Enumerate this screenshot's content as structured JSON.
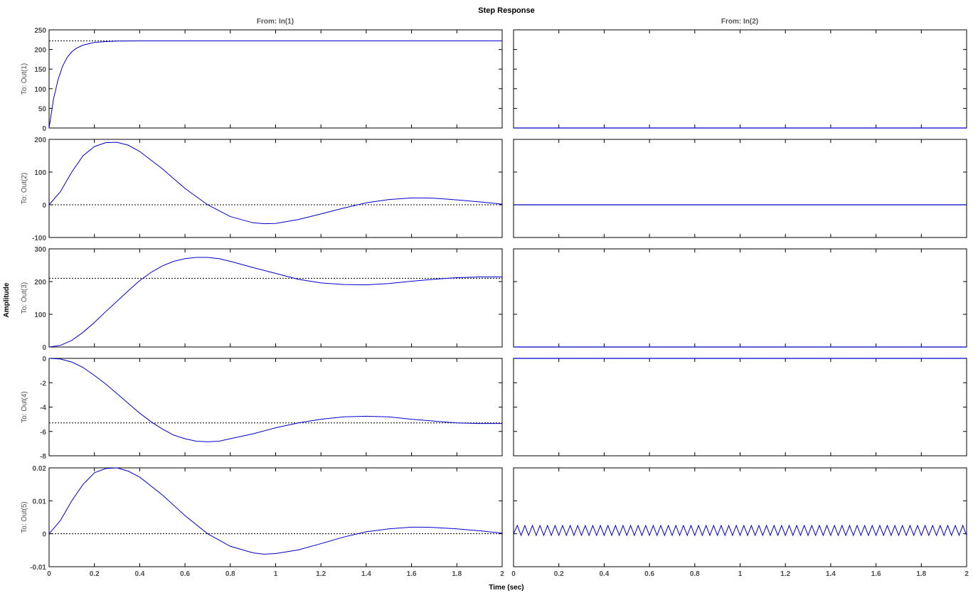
{
  "chart_data": {
    "type": "line",
    "title": "Step Response",
    "xlabel": "Time (sec)",
    "ylabel": "Amplitude",
    "column_titles": [
      "From: In(1)",
      "From: In(2)"
    ],
    "row_labels": [
      "To: Out(1)",
      "To: Out(2)",
      "To: Out(3)",
      "To: Out(4)",
      "To: Out(5)"
    ],
    "xlim": [
      0,
      2
    ],
    "xticks": [
      0,
      0.2,
      0.4,
      0.6,
      0.8,
      1,
      1.2,
      1.4,
      1.6,
      1.8,
      2
    ],
    "xtick_labels": [
      "0",
      "0.2",
      "0.4",
      "0.6",
      "0.8",
      "1",
      "1.2",
      "1.4",
      "1.6",
      "1.8",
      "2"
    ],
    "grid": false,
    "colors": {
      "response": "#0000cc",
      "steady_state": "#000000",
      "axes": "#000000"
    },
    "rows": [
      {
        "ylim": [
          0,
          250
        ],
        "yticks": [
          0,
          50,
          100,
          150,
          200,
          250
        ],
        "ytick_labels": [
          "0",
          "50",
          "100",
          "150",
          "200",
          "250"
        ],
        "steady_state": 222,
        "response_from_in1": {
          "x": [
            0,
            0.02,
            0.04,
            0.06,
            0.08,
            0.1,
            0.12,
            0.15,
            0.2,
            0.25,
            0.3,
            0.4,
            0.6,
            1.0,
            2.0
          ],
          "y": [
            0,
            75,
            124,
            158,
            180,
            194,
            203,
            211,
            218,
            220,
            221.5,
            222,
            222,
            222,
            222
          ]
        },
        "response_from_in2": {
          "x": [
            0,
            2
          ],
          "y": [
            0,
            0
          ]
        }
      },
      {
        "ylim": [
          -100,
          200
        ],
        "yticks": [
          -100,
          0,
          100,
          200
        ],
        "ytick_labels": [
          "-100",
          "0",
          "100",
          "200"
        ],
        "steady_state": 0,
        "response_from_in1": {
          "x": [
            0,
            0.05,
            0.1,
            0.15,
            0.2,
            0.25,
            0.3,
            0.35,
            0.4,
            0.5,
            0.6,
            0.7,
            0.8,
            0.9,
            0.95,
            1.0,
            1.1,
            1.2,
            1.3,
            1.4,
            1.5,
            1.6,
            1.65,
            1.7,
            1.8,
            1.9,
            2.0
          ],
          "y": [
            0,
            40,
            100,
            150,
            178,
            190,
            191,
            182,
            163,
            110,
            50,
            0,
            -36,
            -55,
            -58,
            -57,
            -45,
            -28,
            -10,
            6,
            16,
            21,
            21,
            20,
            15,
            9,
            2
          ]
        },
        "response_from_in2": {
          "x": [
            0,
            2
          ],
          "y": [
            0,
            0
          ]
        }
      },
      {
        "ylim": [
          0,
          300
        ],
        "yticks": [
          0,
          100,
          200,
          300
        ],
        "ytick_labels": [
          "0",
          "100",
          "200",
          "300"
        ],
        "steady_state": 210,
        "response_from_in1": {
          "x": [
            0,
            0.05,
            0.1,
            0.15,
            0.2,
            0.25,
            0.3,
            0.35,
            0.4,
            0.45,
            0.5,
            0.55,
            0.6,
            0.65,
            0.7,
            0.75,
            0.8,
            0.9,
            1.0,
            1.1,
            1.2,
            1.3,
            1.4,
            1.5,
            1.6,
            1.7,
            1.8,
            1.9,
            2.0
          ],
          "y": [
            0,
            5,
            20,
            45,
            75,
            108,
            140,
            172,
            203,
            228,
            248,
            262,
            270,
            274,
            274,
            270,
            262,
            243,
            225,
            207,
            196,
            191,
            190,
            194,
            201,
            207,
            212,
            214,
            214
          ]
        },
        "response_from_in2": {
          "x": [
            0,
            2
          ],
          "y": [
            0,
            0
          ]
        }
      },
      {
        "ylim": [
          -8,
          0
        ],
        "yticks": [
          -8,
          -6,
          -4,
          -2,
          0
        ],
        "ytick_labels": [
          "-8",
          "-6",
          "-4",
          "-2",
          "0"
        ],
        "steady_state": -5.3,
        "response_from_in1": {
          "x": [
            0,
            0.05,
            0.1,
            0.15,
            0.2,
            0.25,
            0.3,
            0.35,
            0.4,
            0.45,
            0.5,
            0.55,
            0.6,
            0.65,
            0.7,
            0.75,
            0.8,
            0.9,
            1.0,
            1.1,
            1.2,
            1.3,
            1.4,
            1.5,
            1.6,
            1.7,
            1.8,
            1.9,
            2.0
          ],
          "y": [
            0,
            -0.05,
            -0.3,
            -0.75,
            -1.4,
            -2.1,
            -2.9,
            -3.7,
            -4.5,
            -5.2,
            -5.8,
            -6.3,
            -6.6,
            -6.8,
            -6.85,
            -6.8,
            -6.6,
            -6.2,
            -5.7,
            -5.3,
            -5.0,
            -4.8,
            -4.75,
            -4.8,
            -5.0,
            -5.15,
            -5.3,
            -5.35,
            -5.35
          ]
        },
        "response_from_in2": {
          "x": [
            0,
            2
          ],
          "y": [
            0,
            0
          ]
        }
      },
      {
        "ylim": [
          -0.01,
          0.02
        ],
        "yticks": [
          -0.01,
          0,
          0.01,
          0.02
        ],
        "ytick_labels": [
          "-0.01",
          "0",
          "0.01",
          "0.02"
        ],
        "steady_state": 0,
        "response_from_in1": {
          "x": [
            0,
            0.05,
            0.1,
            0.15,
            0.2,
            0.25,
            0.3,
            0.35,
            0.4,
            0.5,
            0.6,
            0.7,
            0.8,
            0.9,
            0.95,
            1.0,
            1.1,
            1.2,
            1.3,
            1.4,
            1.5,
            1.6,
            1.65,
            1.7,
            1.8,
            1.9,
            2.0
          ],
          "y": [
            0,
            0.004,
            0.01,
            0.015,
            0.0185,
            0.0198,
            0.02,
            0.019,
            0.0172,
            0.0118,
            0.0055,
            0,
            -0.0038,
            -0.0058,
            -0.0062,
            -0.006,
            -0.0049,
            -0.003,
            -0.001,
            0.0006,
            0.0015,
            0.002,
            0.002,
            0.0019,
            0.0015,
            0.0009,
            0.0002
          ]
        },
        "response_from_in2": {
          "oscillation": {
            "low": -0.0005,
            "high": 0.0025,
            "cycles": 60
          }
        }
      }
    ]
  }
}
